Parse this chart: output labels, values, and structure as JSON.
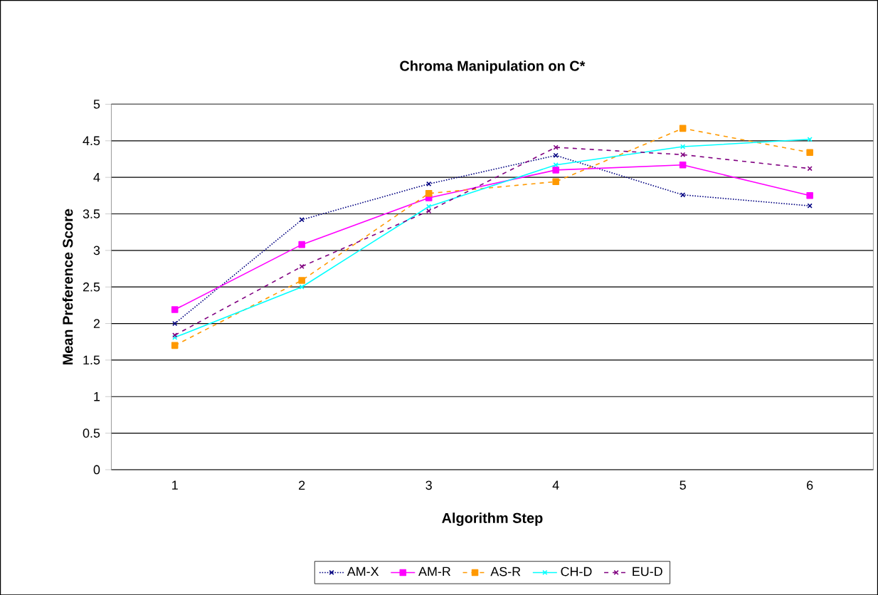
{
  "chart_data": {
    "type": "line",
    "title": "Chroma Manipulation on C*",
    "xlabel": "Algorithm Step",
    "ylabel": "Mean Preference Score",
    "categories": [
      "1",
      "2",
      "3",
      "4",
      "5",
      "6"
    ],
    "series": [
      {
        "name": "AM-X",
        "color": "#000080",
        "marker": "cross",
        "line_style": "dotted",
        "values": [
          2.0,
          3.42,
          3.91,
          4.3,
          3.76,
          3.61
        ]
      },
      {
        "name": "AM-R",
        "color": "#ff00ff",
        "marker": "square",
        "line_style": "solid",
        "values": [
          2.19,
          3.08,
          3.72,
          4.1,
          4.17,
          3.75
        ]
      },
      {
        "name": "AS-R",
        "color": "#ff9900",
        "marker": "square",
        "line_style": "dashed",
        "values": [
          1.7,
          2.59,
          3.78,
          3.94,
          4.67,
          4.34
        ]
      },
      {
        "name": "CH-D",
        "color": "#00ffff",
        "marker": "cross",
        "line_style": "solid",
        "values": [
          1.81,
          2.5,
          3.6,
          4.17,
          4.42,
          4.52
        ]
      },
      {
        "name": "EU-D",
        "color": "#800080",
        "marker": "cross",
        "line_style": "dashed",
        "values": [
          1.84,
          2.78,
          3.54,
          4.41,
          4.31,
          4.12
        ]
      }
    ],
    "ylim": [
      0,
      5
    ],
    "yticks": [
      0,
      0.5,
      1,
      1.5,
      2,
      2.5,
      3,
      3.5,
      4,
      4.5,
      5
    ],
    "grid": "y",
    "legend": "bottom"
  }
}
